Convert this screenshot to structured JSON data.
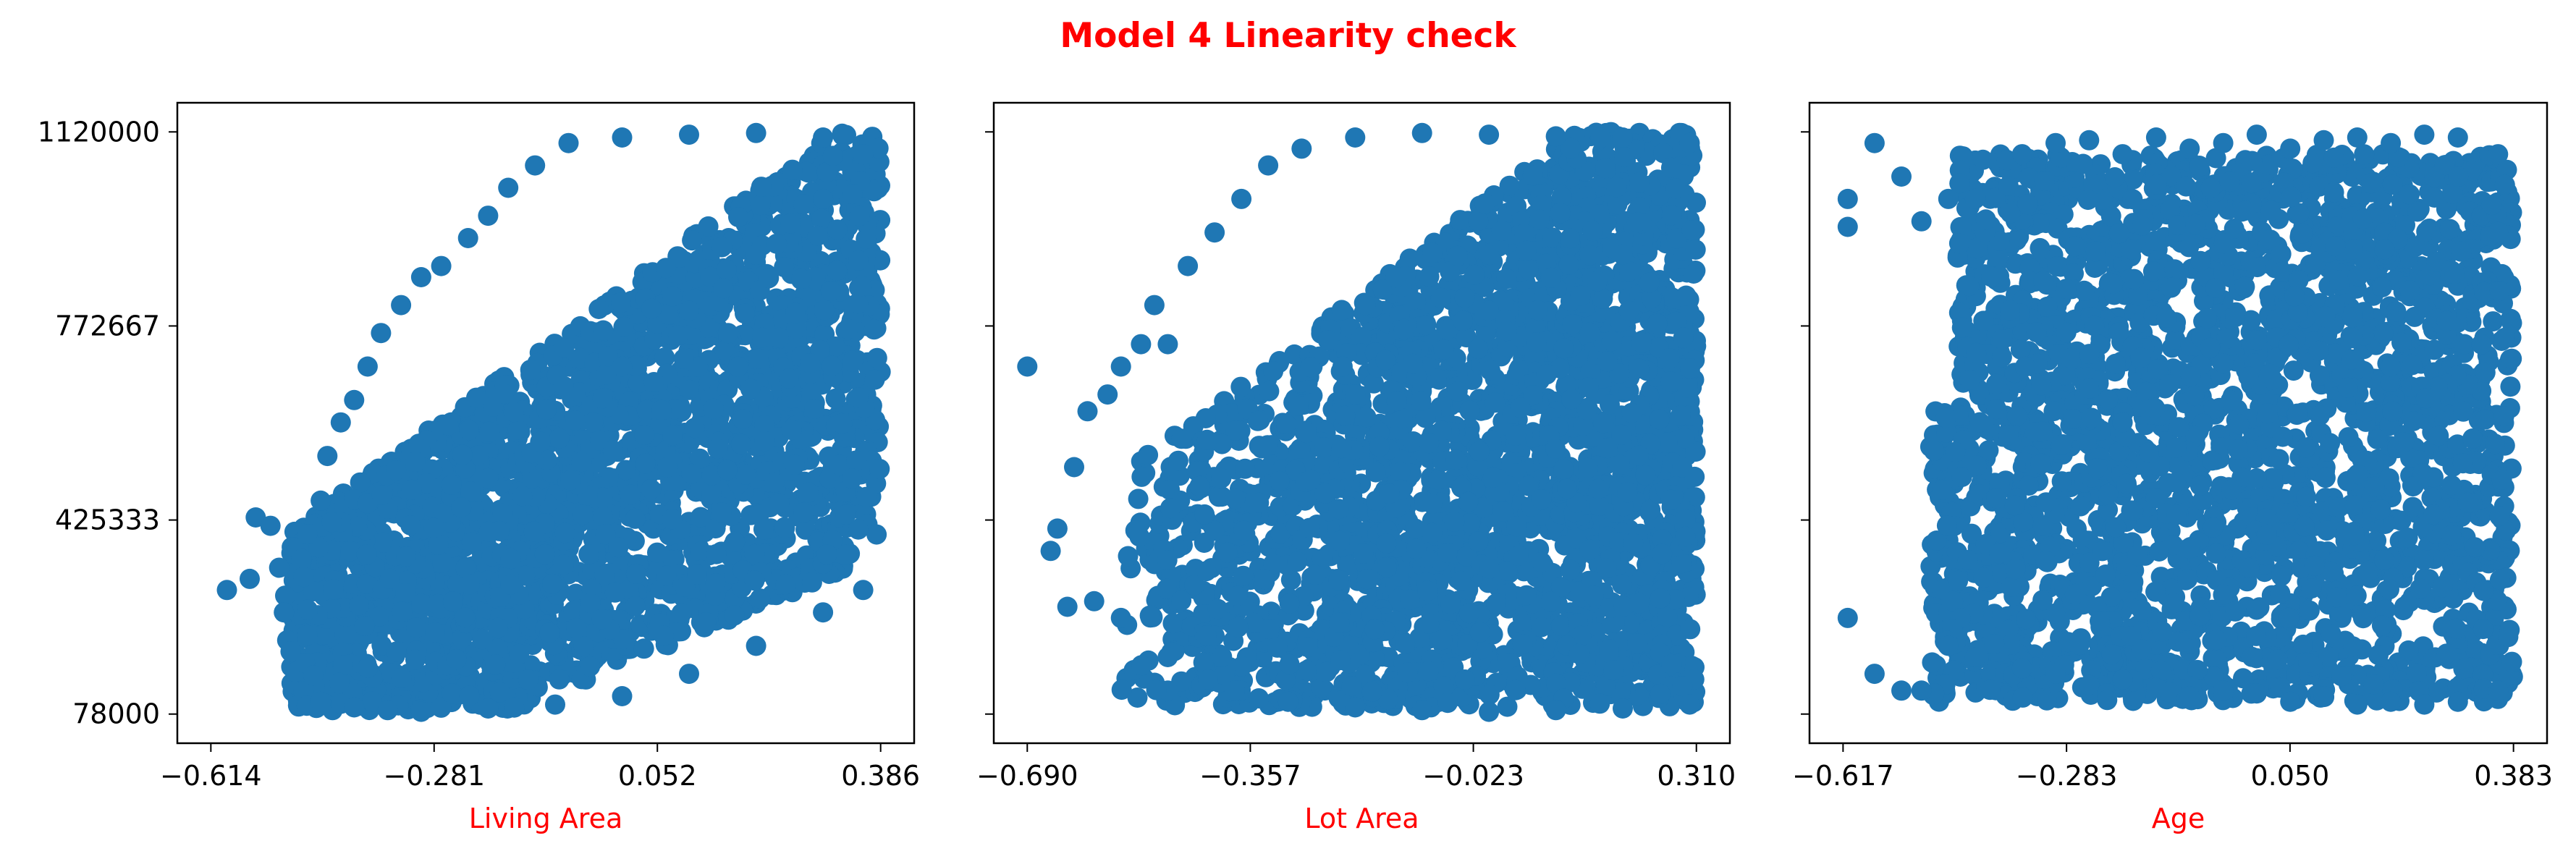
{
  "figure_title": "Model 4 Linearity check",
  "colors": {
    "title": "#ff0000",
    "axis_label": "#ff0000",
    "points": "#1f77b4"
  },
  "chart_data": [
    {
      "type": "scatter",
      "xlabel": "Living Area",
      "ylabel": "",
      "xlim": [
        -0.614,
        0.386
      ],
      "ylim": [
        78000,
        1120000
      ],
      "xticks": [
        "-0.614",
        "-0.281",
        "0.052",
        "0.386"
      ],
      "yticks": [
        "78000",
        "425333",
        "772667",
        "1120000"
      ],
      "trend": "positive",
      "grid": false,
      "points": [
        [
          -0.59,
          300000
        ],
        [
          -0.556,
          320000
        ],
        [
          -0.547,
          430000
        ],
        [
          -0.525,
          415000
        ],
        [
          -0.503,
          290000
        ],
        [
          -0.512,
          340000
        ],
        [
          -0.5,
          210000
        ],
        [
          -0.505,
          260000
        ],
        [
          -0.495,
          190000
        ],
        [
          -0.47,
          400000
        ],
        [
          -0.45,
          460000
        ],
        [
          -0.44,
          540000
        ],
        [
          -0.42,
          600000
        ],
        [
          -0.4,
          640000
        ],
        [
          -0.38,
          700000
        ],
        [
          -0.36,
          760000
        ],
        [
          -0.33,
          810000
        ],
        [
          -0.3,
          860000
        ],
        [
          -0.27,
          880000
        ],
        [
          -0.23,
          930000
        ],
        [
          -0.2,
          970000
        ],
        [
          -0.17,
          1020000
        ],
        [
          -0.13,
          1060000
        ],
        [
          -0.08,
          1100000
        ],
        [
          0.0,
          1110000
        ],
        [
          0.1,
          1115000
        ],
        [
          0.2,
          1118000
        ],
        [
          0.3,
          1110000
        ],
        [
          0.36,
          1080000
        ],
        [
          -0.45,
          100000
        ],
        [
          -0.4,
          90000
        ],
        [
          -0.35,
          85000
        ],
        [
          -0.3,
          82000
        ],
        [
          -0.2,
          88000
        ],
        [
          -0.1,
          95000
        ],
        [
          0.0,
          110000
        ],
        [
          0.1,
          150000
        ],
        [
          0.2,
          200000
        ],
        [
          0.3,
          260000
        ],
        [
          0.36,
          300000
        ],
        [
          -0.2,
          500000
        ],
        [
          0.0,
          700000
        ],
        [
          0.1,
          800000
        ],
        [
          0.2,
          900000
        ],
        [
          0.3,
          1000000
        ]
      ]
    },
    {
      "type": "scatter",
      "xlabel": "Lot Area",
      "ylabel": "",
      "xlim": [
        -0.69,
        0.31
      ],
      "ylim": [
        78000,
        1120000
      ],
      "xticks": [
        "-0.690",
        "-0.357",
        "-0.023",
        "0.310"
      ],
      "yticks": [
        "78000",
        "425333",
        "772667",
        "1120000"
      ],
      "trend": "weak positive",
      "grid": false,
      "points": [
        [
          -0.69,
          700000
        ],
        [
          -0.655,
          370000
        ],
        [
          -0.645,
          410000
        ],
        [
          -0.63,
          270000
        ],
        [
          -0.62,
          520000
        ],
        [
          -0.6,
          620000
        ],
        [
          -0.59,
          280000
        ],
        [
          -0.57,
          650000
        ],
        [
          -0.55,
          700000
        ],
        [
          -0.52,
          740000
        ],
        [
          -0.5,
          810000
        ],
        [
          -0.48,
          740000
        ],
        [
          -0.45,
          880000
        ],
        [
          -0.41,
          940000
        ],
        [
          -0.37,
          1000000
        ],
        [
          -0.33,
          1060000
        ],
        [
          -0.28,
          1090000
        ],
        [
          -0.2,
          1110000
        ],
        [
          -0.1,
          1118000
        ],
        [
          0.0,
          1115000
        ],
        [
          0.1,
          1112000
        ],
        [
          0.2,
          1110000
        ],
        [
          0.3,
          1100000
        ],
        [
          -0.55,
          250000
        ],
        [
          -0.48,
          180000
        ],
        [
          -0.42,
          140000
        ],
        [
          -0.38,
          120000
        ],
        [
          -0.3,
          100000
        ],
        [
          -0.2,
          90000
        ],
        [
          -0.1,
          85000
        ],
        [
          0.0,
          82000
        ],
        [
          0.1,
          85000
        ],
        [
          0.2,
          88000
        ],
        [
          0.3,
          95000
        ],
        [
          -0.4,
          500000
        ],
        [
          -0.2,
          650000
        ],
        [
          0.0,
          800000
        ],
        [
          0.2,
          900000
        ]
      ]
    },
    {
      "type": "scatter",
      "xlabel": "Age",
      "ylabel": "",
      "xlim": [
        -0.617,
        0.383
      ],
      "ylim": [
        78000,
        1120000
      ],
      "xticks": [
        "-0.617",
        "-0.283",
        "0.050",
        "0.383"
      ],
      "yticks": [
        "78000",
        "425333",
        "772667",
        "1120000"
      ],
      "trend": "none",
      "grid": false,
      "points": [
        [
          -0.61,
          250000
        ],
        [
          -0.61,
          950000
        ],
        [
          -0.61,
          1000000
        ],
        [
          -0.57,
          150000
        ],
        [
          -0.57,
          1100000
        ],
        [
          -0.53,
          120000
        ],
        [
          -0.53,
          1040000
        ],
        [
          -0.5,
          120000
        ],
        [
          -0.5,
          960000
        ],
        [
          -0.46,
          200000
        ],
        [
          -0.46,
          1000000
        ],
        [
          -0.42,
          180000
        ],
        [
          -0.42,
          1000000
        ],
        [
          -0.35,
          160000
        ],
        [
          -0.35,
          1080000
        ],
        [
          -0.3,
          150000
        ],
        [
          -0.3,
          1100000
        ],
        [
          -0.25,
          130000
        ],
        [
          -0.25,
          1105000
        ],
        [
          -0.2,
          140000
        ],
        [
          -0.2,
          1080000
        ],
        [
          -0.15,
          125000
        ],
        [
          -0.15,
          1110000
        ],
        [
          -0.1,
          110000
        ],
        [
          -0.1,
          1090000
        ],
        [
          -0.05,
          120000
        ],
        [
          -0.05,
          1100000
        ],
        [
          0.0,
          115000
        ],
        [
          0.0,
          1115000
        ],
        [
          0.05,
          100000
        ],
        [
          0.05,
          1090000
        ],
        [
          0.1,
          110000
        ],
        [
          0.1,
          1105000
        ],
        [
          0.15,
          95000
        ],
        [
          0.15,
          1110000
        ],
        [
          0.2,
          100000
        ],
        [
          0.2,
          1100000
        ],
        [
          0.25,
          95000
        ],
        [
          0.25,
          1115000
        ],
        [
          0.3,
          100000
        ],
        [
          0.3,
          1110000
        ],
        [
          0.36,
          120000
        ],
        [
          0.36,
          1080000
        ],
        [
          -0.2,
          600000
        ],
        [
          0.0,
          500000
        ],
        [
          0.2,
          700000
        ]
      ]
    }
  ]
}
